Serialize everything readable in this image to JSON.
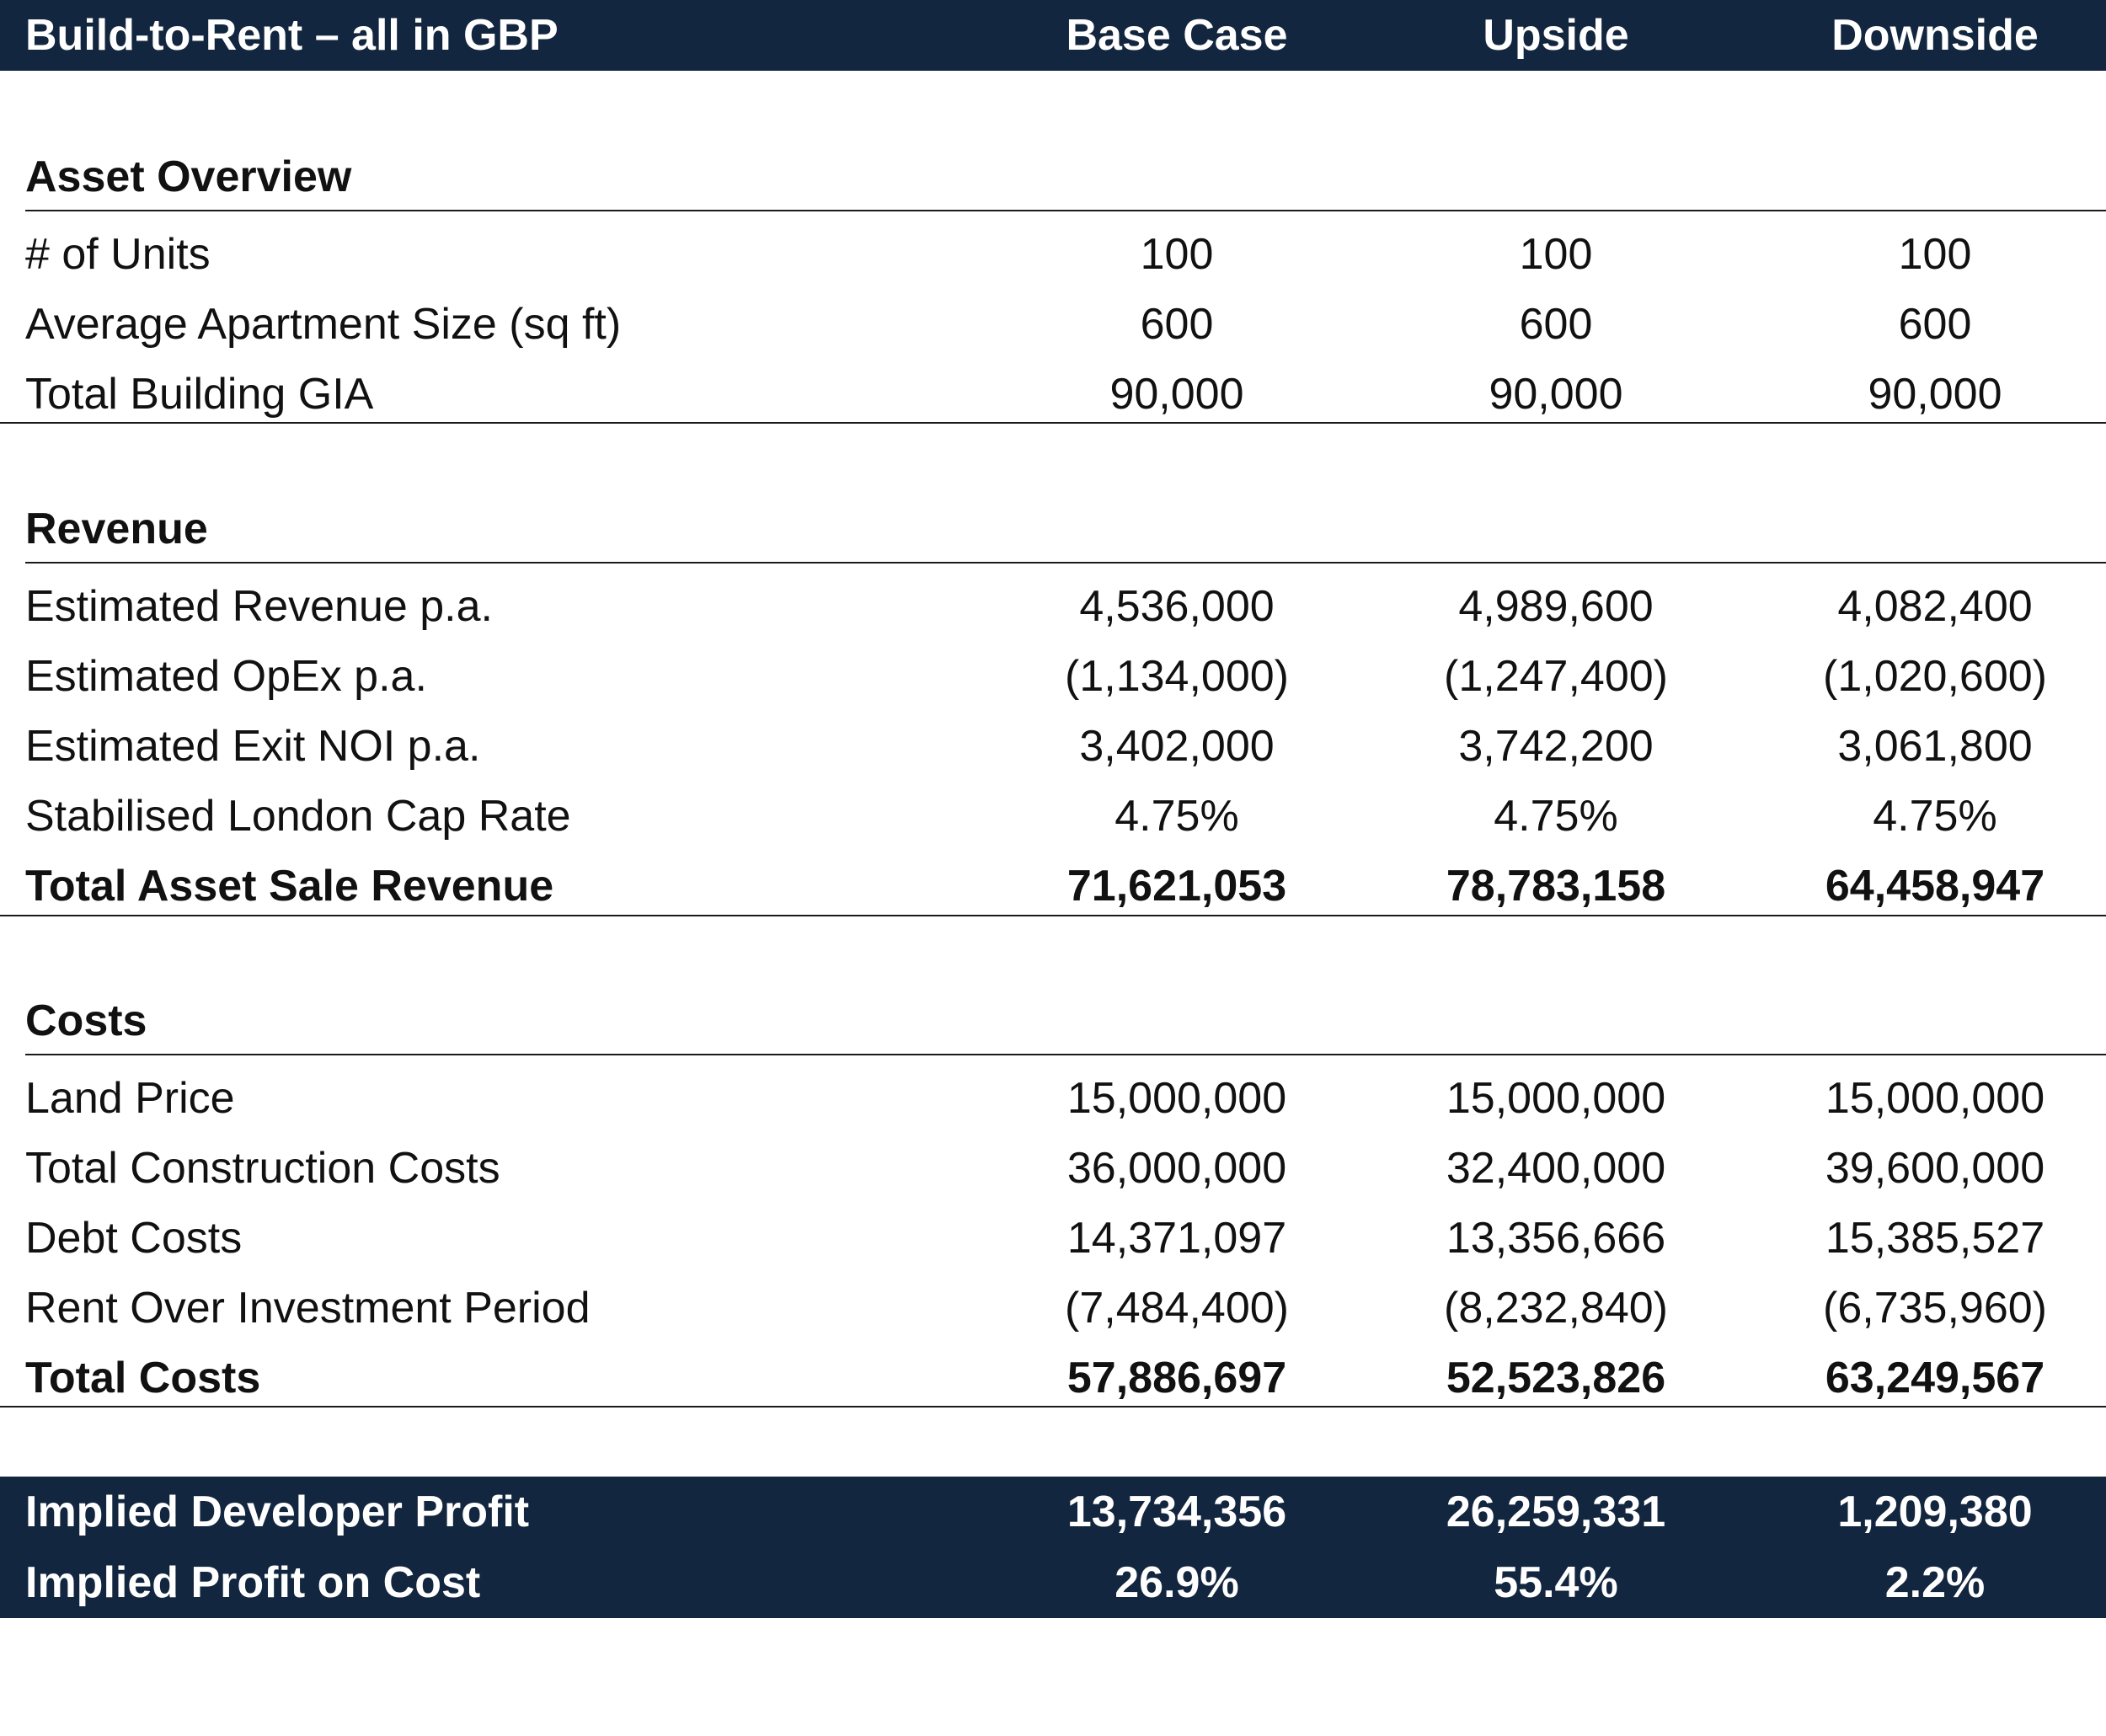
{
  "header": {
    "title": "Build-to-Rent – all in GBP",
    "columns": [
      "Base Case",
      "Upside",
      "Downside"
    ]
  },
  "sections": {
    "asset_overview": {
      "title": "Asset Overview",
      "rows": [
        {
          "label": "# of Units",
          "values": [
            "100",
            "100",
            "100"
          ]
        },
        {
          "label": "Average Apartment Size (sq ft)",
          "values": [
            "600",
            "600",
            "600"
          ]
        },
        {
          "label": "Total Building GIA",
          "values": [
            "90,000",
            "90,000",
            "90,000"
          ]
        }
      ]
    },
    "revenue": {
      "title": "Revenue",
      "rows": [
        {
          "label": "Estimated Revenue p.a.",
          "values": [
            "4,536,000",
            "4,989,600",
            "4,082,400"
          ]
        },
        {
          "label": "Estimated OpEx p.a.",
          "values": [
            "(1,134,000)",
            "(1,247,400)",
            "(1,020,600)"
          ]
        },
        {
          "label": "Estimated Exit NOI p.a.",
          "values": [
            "3,402,000",
            "3,742,200",
            "3,061,800"
          ]
        },
        {
          "label": "Stabilised London Cap Rate",
          "values": [
            "4.75%",
            "4.75%",
            "4.75%"
          ]
        },
        {
          "label": "Total Asset Sale Revenue",
          "values": [
            "71,621,053",
            "78,783,158",
            "64,458,947"
          ]
        }
      ]
    },
    "costs": {
      "title": "Costs",
      "rows": [
        {
          "label": "Land Price",
          "values": [
            "15,000,000",
            "15,000,000",
            "15,000,000"
          ]
        },
        {
          "label": "Total Construction Costs",
          "values": [
            "36,000,000",
            "32,400,000",
            "39,600,000"
          ]
        },
        {
          "label": "Debt Costs",
          "values": [
            "14,371,097",
            "13,356,666",
            "15,385,527"
          ]
        },
        {
          "label": "Rent Over Investment Period",
          "values": [
            "(7,484,400)",
            "(8,232,840)",
            "(6,735,960)"
          ]
        },
        {
          "label": "Total Costs",
          "values": [
            "57,886,697",
            "52,523,826",
            "63,249,567"
          ]
        }
      ]
    },
    "summary": {
      "rows": [
        {
          "label": "Implied Developer Profit",
          "values": [
            "13,734,356",
            "26,259,331",
            "1,209,380"
          ]
        },
        {
          "label": "Implied Profit on Cost",
          "values": [
            "26.9%",
            "55.4%",
            "2.2%"
          ]
        }
      ]
    }
  },
  "colors": {
    "header_bg": "#13263f",
    "header_text": "#ffffff",
    "body_text": "#111111",
    "rule": "#1a1a1a"
  }
}
